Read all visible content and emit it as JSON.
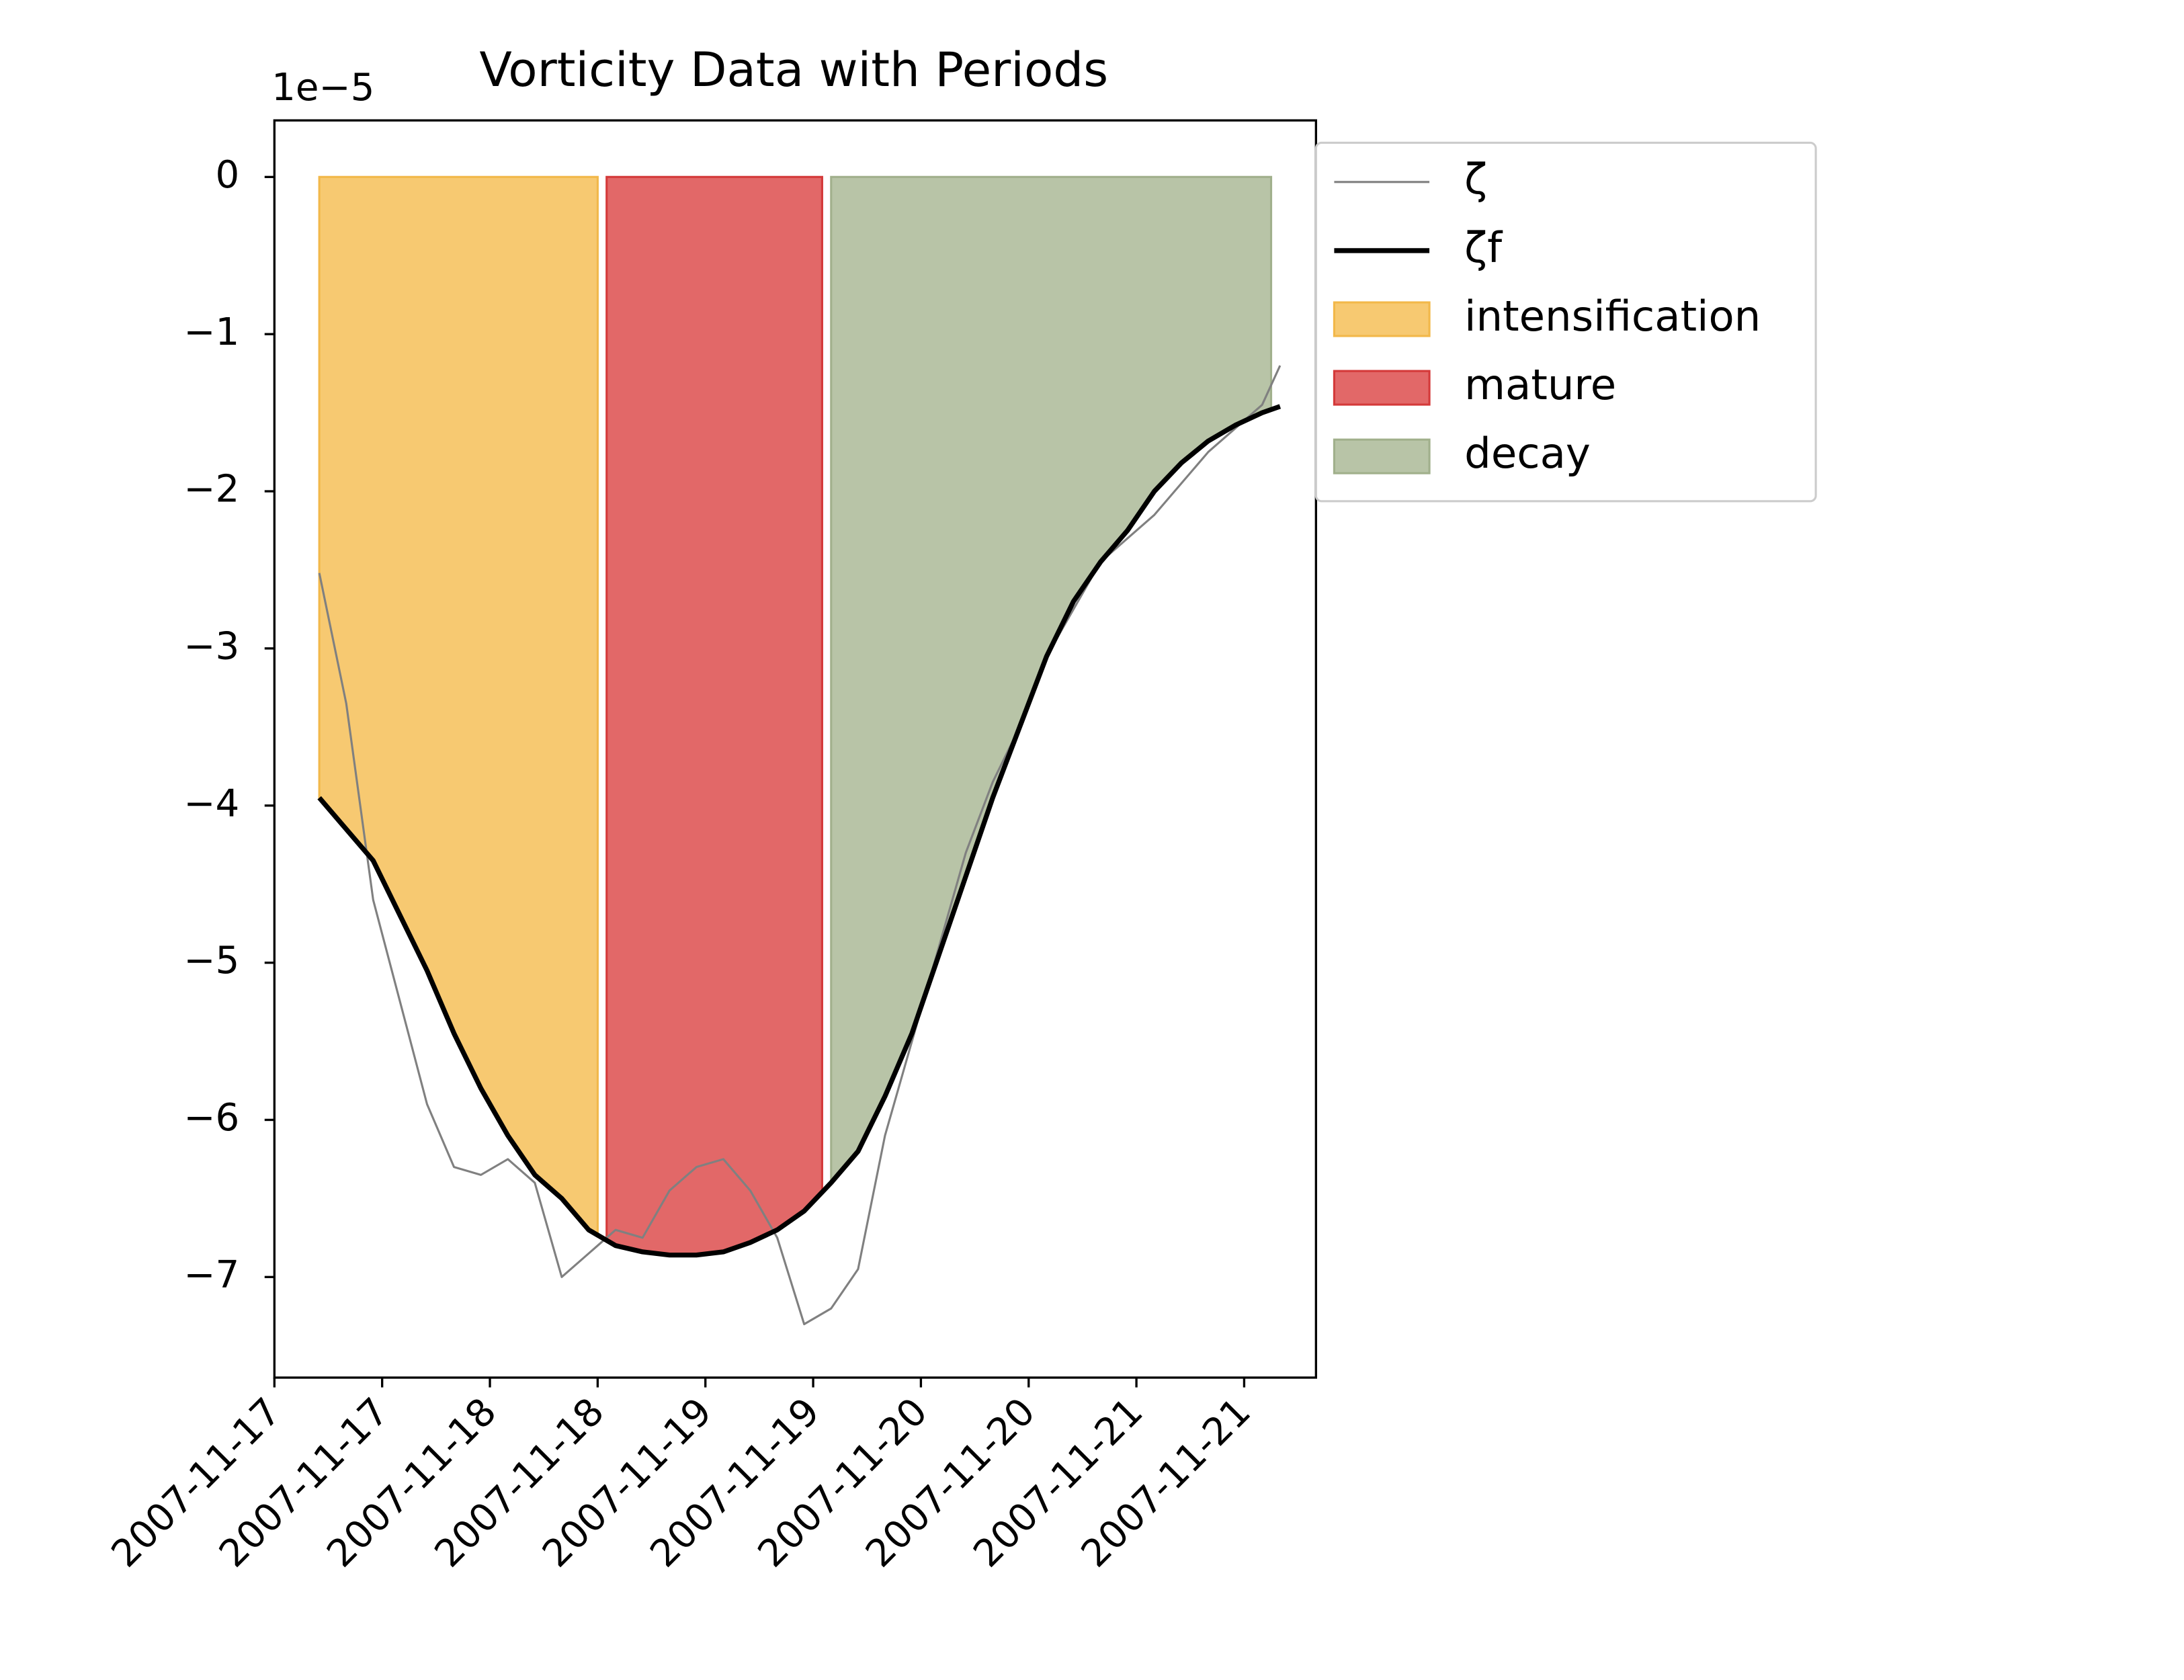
{
  "chart_data": {
    "type": "line",
    "title": "Vorticity Data with Periods",
    "y_offset_label": "1e−5",
    "x": [
      "2007-11-17T05:00",
      "2007-11-17T08:00",
      "2007-11-17T11:00",
      "2007-11-17T14:00",
      "2007-11-17T17:00",
      "2007-11-17T20:00",
      "2007-11-17T23:00",
      "2007-11-18T02:00",
      "2007-11-18T05:00",
      "2007-11-18T08:00",
      "2007-11-18T11:00",
      "2007-11-18T14:00",
      "2007-11-18T17:00",
      "2007-11-18T20:00",
      "2007-11-18T23:00",
      "2007-11-19T02:00",
      "2007-11-19T05:00",
      "2007-11-19T08:00",
      "2007-11-19T11:00",
      "2007-11-19T14:00",
      "2007-11-19T17:00",
      "2007-11-19T20:00",
      "2007-11-19T23:00",
      "2007-11-20T02:00",
      "2007-11-20T05:00",
      "2007-11-20T08:00",
      "2007-11-20T11:00",
      "2007-11-20T14:00",
      "2007-11-20T17:00",
      "2007-11-20T20:00",
      "2007-11-20T23:00",
      "2007-11-21T02:00",
      "2007-11-21T05:00",
      "2007-11-21T08:00",
      "2007-11-21T11:00",
      "2007-11-21T14:00",
      "2007-11-21T16:00"
    ],
    "series": [
      {
        "name": "ζ",
        "color": "#808080",
        "width": 1.5,
        "values": [
          -2.52,
          -3.35,
          -4.6,
          -5.25,
          -5.9,
          -6.3,
          -6.35,
          -6.25,
          -6.4,
          -7.0,
          -6.85,
          -6.7,
          -6.75,
          -6.45,
          -6.3,
          -6.25,
          -6.45,
          -6.75,
          -7.3,
          -7.2,
          -6.95,
          -6.1,
          -5.5,
          -4.9,
          -4.3,
          -3.85,
          -3.5,
          -3.05,
          -2.75,
          -2.45,
          -2.3,
          -2.15,
          -1.95,
          -1.75,
          -1.6,
          -1.45,
          -1.2
        ]
      },
      {
        "name": "ζf",
        "color": "#000000",
        "width": 3.5,
        "values": [
          -3.95,
          -4.15,
          -4.35,
          -4.7,
          -5.05,
          -5.45,
          -5.8,
          -6.1,
          -6.35,
          -6.5,
          -6.7,
          -6.8,
          -6.84,
          -6.86,
          -6.86,
          -6.84,
          -6.78,
          -6.7,
          -6.58,
          -6.4,
          -6.2,
          -5.85,
          -5.45,
          -4.95,
          -4.45,
          -3.95,
          -3.5,
          -3.05,
          -2.7,
          -2.45,
          -2.25,
          -2.0,
          -1.82,
          -1.68,
          -1.58,
          -1.5,
          -1.46
        ]
      }
    ],
    "periods": [
      {
        "name": "intensification",
        "color": "#f7c971",
        "edge": "#f2b84a",
        "start": "2007-11-17T05:00",
        "end": "2007-11-18T12:00"
      },
      {
        "name": "mature",
        "color": "#e26868",
        "edge": "#d43a3a",
        "start": "2007-11-18T13:00",
        "end": "2007-11-19T13:00"
      },
      {
        "name": "decay",
        "color": "#b8c4a7",
        "edge": "#a1b08c",
        "start": "2007-11-19T14:00",
        "end": "2007-11-21T15:00"
      }
    ],
    "xlim": [
      "2007-11-17T00:00",
      "2007-11-21T20:00"
    ],
    "xticks": [
      {
        "value": "2007-11-17T00:00",
        "label": "2007-11-17"
      },
      {
        "value": "2007-11-17T12:00",
        "label": "2007-11-17"
      },
      {
        "value": "2007-11-18T00:00",
        "label": "2007-11-18"
      },
      {
        "value": "2007-11-18T12:00",
        "label": "2007-11-18"
      },
      {
        "value": "2007-11-19T00:00",
        "label": "2007-11-19"
      },
      {
        "value": "2007-11-19T12:00",
        "label": "2007-11-19"
      },
      {
        "value": "2007-11-20T00:00",
        "label": "2007-11-20"
      },
      {
        "value": "2007-11-20T12:00",
        "label": "2007-11-20"
      },
      {
        "value": "2007-11-21T00:00",
        "label": "2007-11-21"
      },
      {
        "value": "2007-11-21T12:00",
        "label": "2007-11-21"
      }
    ],
    "ylim": [
      -7.64,
      0.36
    ],
    "yticks": [
      0,
      {
        "value": -1,
        "label": "−1"
      },
      {
        "value": -2,
        "label": "−2"
      },
      {
        "value": -3,
        "label": "−3"
      },
      {
        "value": -4,
        "label": "−4"
      },
      {
        "value": -5,
        "label": "−5"
      },
      {
        "value": -6,
        "label": "−6"
      },
      {
        "value": -7,
        "label": "−7"
      }
    ],
    "grid": false,
    "legend": "outside upper right"
  }
}
